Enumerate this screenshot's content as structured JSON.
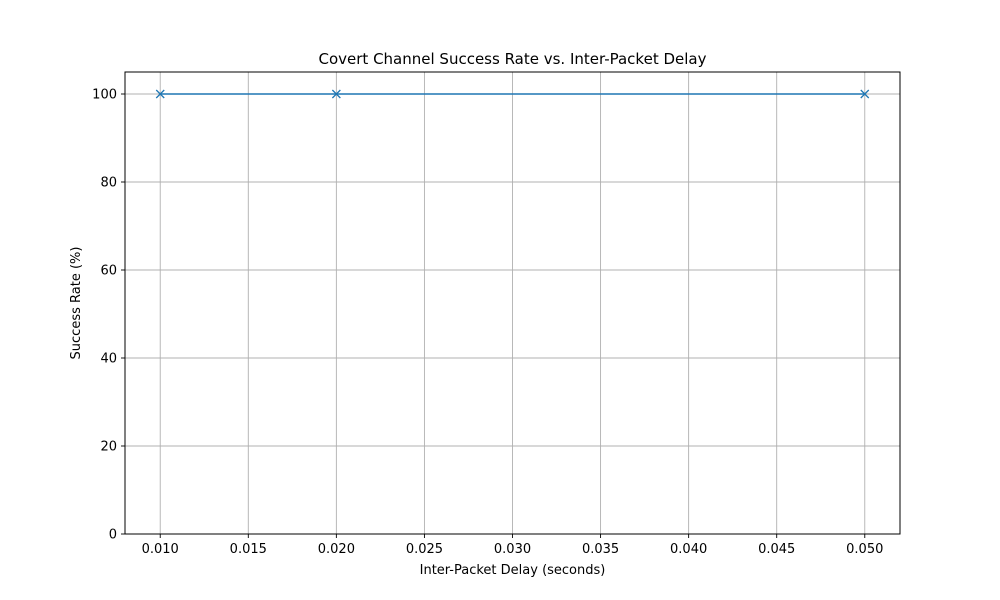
{
  "chart_data": {
    "type": "line",
    "title": "Covert Channel Success Rate vs. Inter-Packet Delay",
    "xlabel": "Inter-Packet Delay (seconds)",
    "ylabel": "Success Rate (%)",
    "xlim": [
      0.008,
      0.052
    ],
    "ylim": [
      0,
      105
    ],
    "xticks": [
      0.01,
      0.015,
      0.02,
      0.025,
      0.03,
      0.035,
      0.04,
      0.045,
      0.05
    ],
    "xtick_labels": [
      "0.010",
      "0.015",
      "0.020",
      "0.025",
      "0.030",
      "0.035",
      "0.040",
      "0.045",
      "0.050"
    ],
    "yticks": [
      0,
      20,
      40,
      60,
      80,
      100
    ],
    "ytick_labels": [
      "0",
      "20",
      "40",
      "60",
      "80",
      "100"
    ],
    "grid": true,
    "marker": "x",
    "series": [
      {
        "color": "#1f77b4",
        "x": [
          0.01,
          0.02,
          0.05
        ],
        "y": [
          100,
          100,
          100
        ]
      }
    ]
  }
}
